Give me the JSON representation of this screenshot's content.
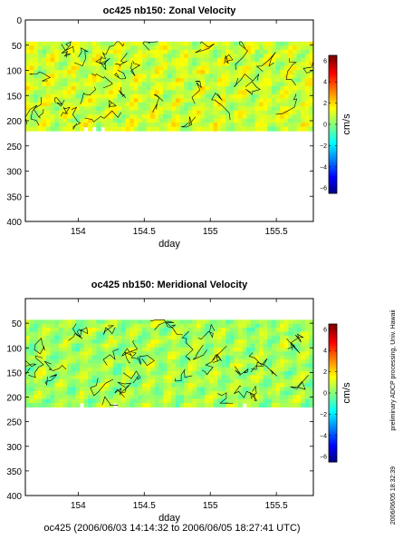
{
  "chart_data": [
    {
      "type": "heatmap",
      "title": "oc425 nb150: Zonal Velocity",
      "xlabel": "dday",
      "ylabel": "",
      "xlim": [
        153.6,
        155.78
      ],
      "ylim": [
        400,
        0
      ],
      "xticks": [
        "154",
        "154.5",
        "155",
        "155.5"
      ],
      "xtick_values": [
        154,
        154.5,
        155,
        155.5
      ],
      "yticks": [
        "0",
        "50",
        "100",
        "150",
        "200",
        "250",
        "300",
        "350",
        "400"
      ],
      "ytick_values": [
        0,
        50,
        100,
        150,
        200,
        250,
        300,
        350,
        400
      ],
      "data_depth_range": [
        43,
        220
      ],
      "colorbar": {
        "label": "cm/s",
        "range": [
          -6.5,
          6.5
        ],
        "ticks": [
          "6",
          "4",
          "2",
          "0",
          "−2",
          "−4",
          "−6"
        ],
        "tick_values": [
          6,
          4,
          2,
          0,
          -2,
          -4,
          -6
        ]
      },
      "dominant_value_range": [
        0,
        2
      ]
    },
    {
      "type": "heatmap",
      "title": "oc425 nb150: Meridional Velocity",
      "xlabel": "dday",
      "ylabel": "",
      "xlim": [
        153.6,
        155.78
      ],
      "ylim": [
        400,
        0
      ],
      "xticks": [
        "154",
        "154.5",
        "155",
        "155.5"
      ],
      "xtick_values": [
        154,
        154.5,
        155,
        155.5
      ],
      "yticks": [
        "50",
        "100",
        "150",
        "200",
        "250",
        "300",
        "350",
        "400"
      ],
      "ytick_values": [
        50,
        100,
        150,
        200,
        250,
        300,
        350,
        400
      ],
      "data_depth_range": [
        43,
        220
      ],
      "colorbar": {
        "label": "cm/s",
        "range": [
          -6.5,
          6.5
        ],
        "ticks": [
          "6",
          "4",
          "2",
          "0",
          "−2",
          "−4",
          "−6"
        ],
        "tick_values": [
          6,
          4,
          2,
          0,
          -2,
          -4,
          -6
        ]
      },
      "dominant_value_range": [
        -0.5,
        1.5
      ]
    }
  ],
  "footer": "oc425 (2006/06/03 14:14:32 to 2006/06/05 18:27:41 UTC)",
  "side_text_top": "preliminary ADCP processing,  Univ. Hawaii",
  "side_text_bottom": "2006/06/05 18:32:39"
}
